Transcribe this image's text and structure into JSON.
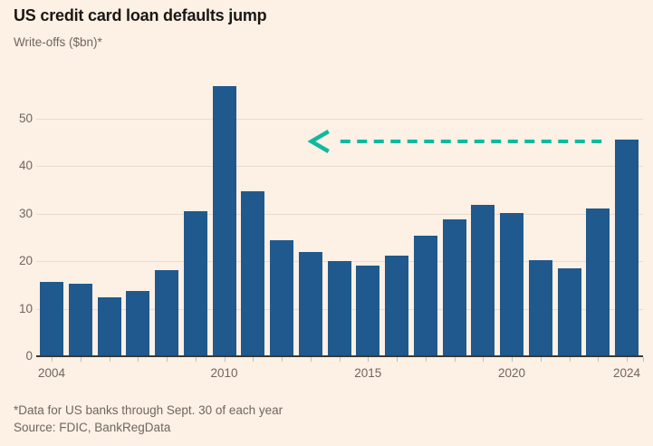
{
  "header": {
    "title": "US credit card loan defaults jump",
    "subtitle": "Write-offs ($bn)*"
  },
  "footer": {
    "note": "*Data for US banks through Sept. 30 of each year",
    "source": "Source: FDIC, BankRegData"
  },
  "colors": {
    "background": "#FDF0E4",
    "bar": "#20598D",
    "grid": "#E8DCD1",
    "axis": "#3D3935",
    "tick": "#C9BDB2",
    "text_muted": "#6E6760",
    "title_text": "#1A1714",
    "arrow": "#0FB9A0"
  },
  "chart_data": {
    "type": "bar",
    "title": "US credit card loan defaults jump",
    "subtitle": "Write-offs ($bn)*",
    "xlabel": "",
    "ylabel": "Write-offs ($bn)*",
    "categories": [
      "2004",
      "2005",
      "2006",
      "2007",
      "2008",
      "2009",
      "2010",
      "2011",
      "2012",
      "2013",
      "2014",
      "2015",
      "2016",
      "2017",
      "2018",
      "2019",
      "2020",
      "2021",
      "2022",
      "2023",
      "2024"
    ],
    "values": [
      15.6,
      15.2,
      12.5,
      13.7,
      18.2,
      30.6,
      56.9,
      34.8,
      24.4,
      21.9,
      20.1,
      19.1,
      21.1,
      25.3,
      28.8,
      31.9,
      30.1,
      20.2,
      18.5,
      31.2,
      45.6
    ],
    "yticks": [
      0,
      10,
      20,
      30,
      40,
      50
    ],
    "ylim": [
      0,
      60
    ],
    "xtick_labels": [
      "2004",
      "2010",
      "2015",
      "2020",
      "2024"
    ],
    "grid": "horizontal",
    "legend": "none",
    "annotation": {
      "type": "dashed-arrow",
      "direction": "left",
      "y_value": 45.3,
      "from_category": "2023",
      "to_category": "2013",
      "color": "#0FB9A0"
    }
  }
}
